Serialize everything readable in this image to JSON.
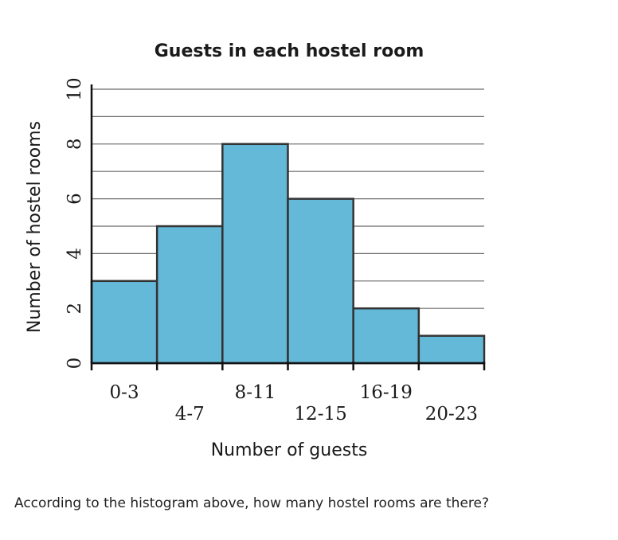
{
  "chart_data": {
    "type": "bar",
    "title": "Guests in each hostel room",
    "xlabel": "Number of guests",
    "ylabel": "Number of hostel rooms",
    "categories": [
      "0-3",
      "4-7",
      "8-11",
      "12-15",
      "16-19",
      "20-23"
    ],
    "values": [
      3,
      5,
      8,
      6,
      2,
      1
    ],
    "ylim": [
      0,
      10
    ],
    "y_ticks": [
      0,
      2,
      4,
      6,
      8,
      10
    ],
    "grid": true,
    "bar_color": "#64b9d8",
    "bar_edge_color": "#333333"
  },
  "question": "According to the histogram above, how many hostel rooms are there?"
}
